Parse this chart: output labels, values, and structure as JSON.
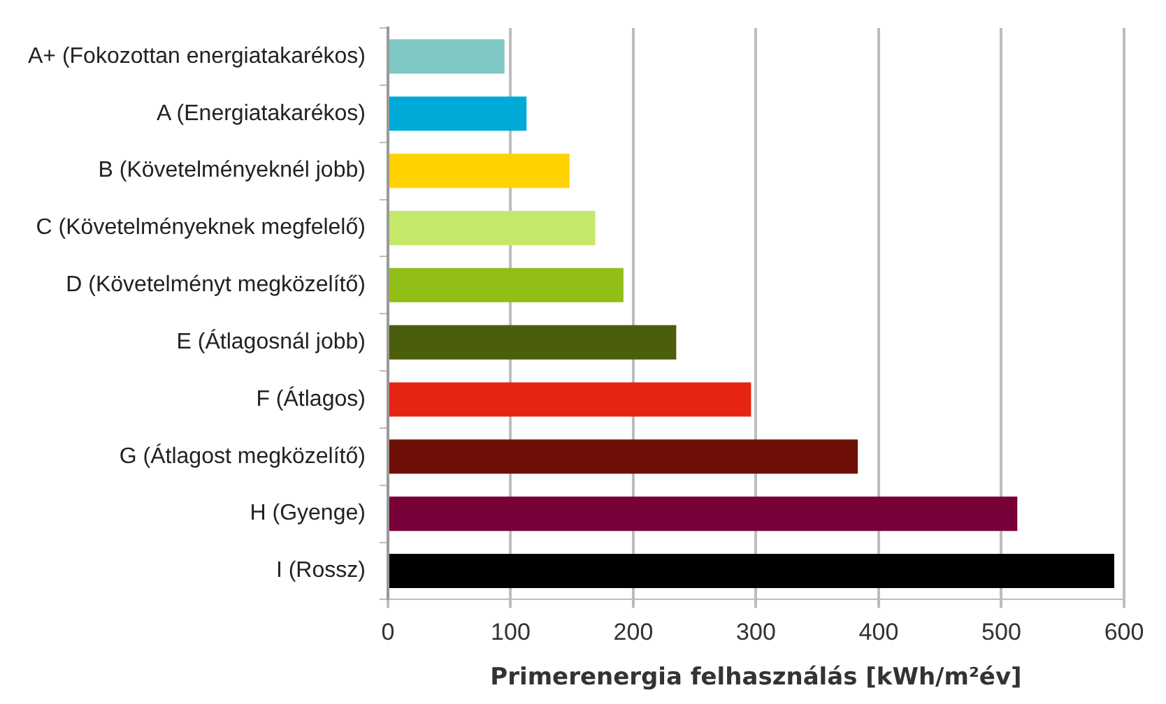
{
  "chart_data": {
    "type": "bar",
    "orientation": "horizontal",
    "categories": [
      "A+ (Fokozottan energiatakarékos)",
      "A (Energiatakarékos)",
      "B (Követelményeknél jobb)",
      "C (Követelményeknek megfelelő)",
      "D (Követelményt megközelítő)",
      "E (Átlagosnál jobb)",
      "F (Átlagos)",
      "G (Átlagost megközelítő)",
      "H (Gyenge)",
      "I (Rossz)"
    ],
    "values": [
      95,
      113,
      148,
      169,
      192,
      235,
      296,
      383,
      513,
      592
    ],
    "colors": [
      "#7fc8c4",
      "#00aad8",
      "#ffd200",
      "#c4e86a",
      "#92be18",
      "#4a5e0c",
      "#e62412",
      "#6e1008",
      "#780038",
      "#000000"
    ],
    "xlim": [
      0,
      600
    ],
    "xticks": [
      0,
      100,
      200,
      300,
      400,
      500,
      600
    ],
    "grid": "x",
    "legend": false,
    "xlabel": "Primerenergia felhasználás [kWh/m²év]"
  }
}
